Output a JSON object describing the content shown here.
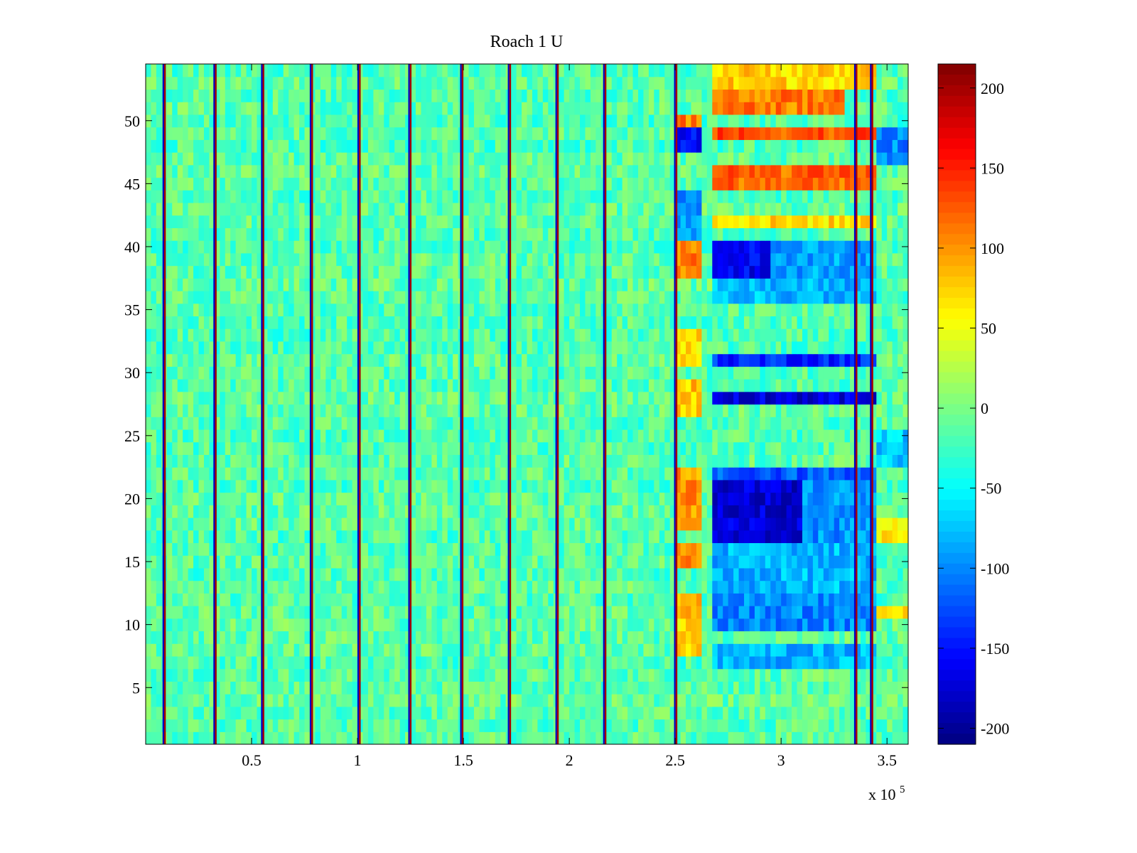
{
  "chart_data": {
    "type": "heatmap",
    "title": "Roach 1 U",
    "xlabel": "",
    "ylabel": "",
    "xlim": [
      0,
      360000
    ],
    "ylim": [
      0.5,
      54.5
    ],
    "x_ticks": [
      50000,
      100000,
      150000,
      200000,
      250000,
      300000,
      350000
    ],
    "x_tick_labels": [
      "0.5",
      "1",
      "1.5",
      "2",
      "2.5",
      "3",
      "3.5"
    ],
    "x_exponent_label": "x 10",
    "x_exponent_power": "5",
    "y_ticks": [
      5,
      10,
      15,
      20,
      25,
      30,
      35,
      40,
      45,
      50
    ],
    "y_tick_labels": [
      "5",
      "10",
      "15",
      "20",
      "25",
      "30",
      "35",
      "40",
      "45",
      "50"
    ],
    "rows": 54,
    "colorbar": {
      "colormap": "jet",
      "range": [
        -210,
        215
      ],
      "ticks": [
        -200,
        -150,
        -100,
        -50,
        0,
        50,
        100,
        150,
        200
      ],
      "tick_labels": [
        "-200",
        "-150",
        "-100",
        "-50",
        "0",
        "50",
        "100",
        "150",
        "200"
      ]
    },
    "baseline_value": -15,
    "noise_amplitude": 28,
    "vertical_stripes": {
      "x_positions": [
        8500,
        32500,
        55000,
        78000,
        100500,
        124500,
        149000,
        171500,
        194000,
        216500,
        250000,
        335000,
        342500
      ],
      "peak_value": 200,
      "trough_value": -180
    },
    "regions": [
      {
        "x": [
          250000,
          262000
        ],
        "rows": [
          8,
          10
        ],
        "value": 70
      },
      {
        "x": [
          250000,
          262000
        ],
        "rows": [
          11,
          12
        ],
        "value": 90
      },
      {
        "x": [
          250000,
          262000
        ],
        "rows": [
          15,
          16
        ],
        "value": 100
      },
      {
        "x": [
          250000,
          262000
        ],
        "rows": [
          18,
          22
        ],
        "value": 100
      },
      {
        "x": [
          250000,
          262000
        ],
        "rows": [
          27,
          29
        ],
        "value": 80
      },
      {
        "x": [
          250000,
          262000
        ],
        "rows": [
          31,
          33
        ],
        "value": 70
      },
      {
        "x": [
          250000,
          262000
        ],
        "rows": [
          38,
          40
        ],
        "value": 110
      },
      {
        "x": [
          250000,
          262000
        ],
        "rows": [
          41,
          44
        ],
        "value": -90
      },
      {
        "x": [
          250000,
          262000
        ],
        "rows": [
          48,
          49
        ],
        "value": -150
      },
      {
        "x": [
          250000,
          262000
        ],
        "rows": [
          50,
          50
        ],
        "value": 110
      },
      {
        "x": [
          268000,
          345000
        ],
        "rows": [
          7,
          8
        ],
        "value": -80
      },
      {
        "x": [
          268000,
          345000
        ],
        "rows": [
          10,
          12
        ],
        "value": -100
      },
      {
        "x": [
          268000,
          345000
        ],
        "rows": [
          13,
          16
        ],
        "value": -80
      },
      {
        "x": [
          268000,
          310000
        ],
        "rows": [
          17,
          21
        ],
        "value": -175
      },
      {
        "x": [
          310000,
          345000
        ],
        "rows": [
          17,
          21
        ],
        "value": -95
      },
      {
        "x": [
          268000,
          345000
        ],
        "rows": [
          22,
          22
        ],
        "value": -120
      },
      {
        "x": [
          268000,
          345000
        ],
        "rows": [
          28,
          28
        ],
        "value": -170
      },
      {
        "x": [
          268000,
          345000
        ],
        "rows": [
          31,
          31
        ],
        "value": -140
      },
      {
        "x": [
          268000,
          345000
        ],
        "rows": [
          36,
          37
        ],
        "value": -80
      },
      {
        "x": [
          268000,
          295000
        ],
        "rows": [
          38,
          40
        ],
        "value": -160
      },
      {
        "x": [
          295000,
          345000
        ],
        "rows": [
          38,
          40
        ],
        "value": -90
      },
      {
        "x": [
          268000,
          345000
        ],
        "rows": [
          42,
          42
        ],
        "value": 70
      },
      {
        "x": [
          268000,
          345000
        ],
        "rows": [
          45,
          46
        ],
        "value": 120
      },
      {
        "x": [
          268000,
          345000
        ],
        "rows": [
          49,
          49
        ],
        "value": 130
      },
      {
        "x": [
          268000,
          330000
        ],
        "rows": [
          51,
          52
        ],
        "value": 110
      },
      {
        "x": [
          268000,
          345000
        ],
        "rows": [
          53,
          54
        ],
        "value": 75
      },
      {
        "x": [
          345000,
          360000
        ],
        "rows": [
          47,
          49
        ],
        "value": -100
      },
      {
        "x": [
          345000,
          360000
        ],
        "rows": [
          23,
          25
        ],
        "value": -70
      },
      {
        "x": [
          345000,
          360000
        ],
        "rows": [
          17,
          18
        ],
        "value": 70
      },
      {
        "x": [
          345000,
          360000
        ],
        "rows": [
          11,
          11
        ],
        "value": 70
      }
    ]
  }
}
